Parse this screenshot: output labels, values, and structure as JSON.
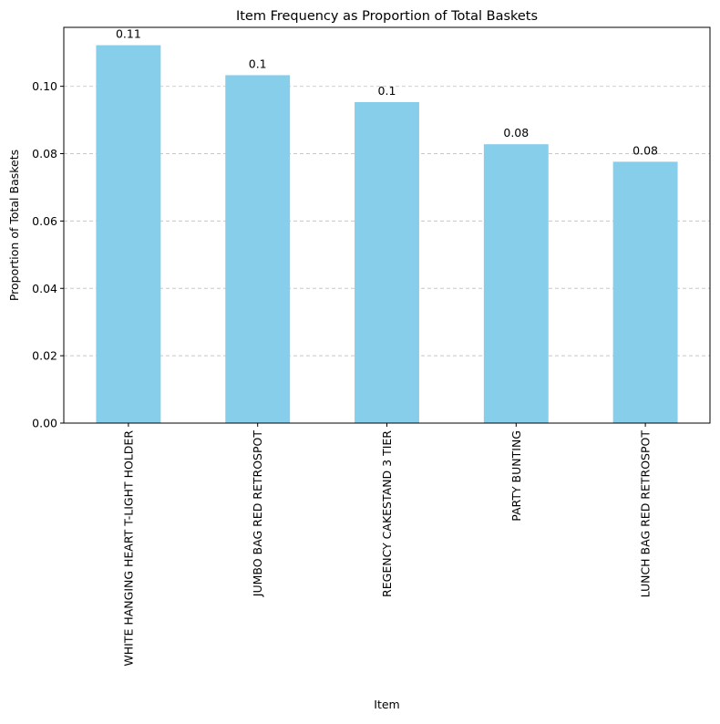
{
  "chart_data": {
    "type": "bar",
    "title": "Item Frequency as Proportion of Total Baskets",
    "xlabel": "Item",
    "ylabel": "Proportion of Total Baskets",
    "categories": [
      "WHITE HANGING HEART T-LIGHT HOLDER",
      "JUMBO BAG RED RETROSPOT",
      "REGENCY CAKESTAND 3 TIER",
      "PARTY BUNTING",
      "LUNCH BAG RED RETROSPOT"
    ],
    "values": [
      0.1122,
      0.1033,
      0.0953,
      0.0828,
      0.0776
    ],
    "data_labels": [
      "0.11",
      "0.1",
      "0.1",
      "0.08",
      "0.08"
    ],
    "ylim": [
      0,
      0.1175
    ],
    "yticks": [
      0.0,
      0.02,
      0.04,
      0.06,
      0.08,
      0.1
    ],
    "ytick_labels": [
      "0.00",
      "0.02",
      "0.04",
      "0.06",
      "0.08",
      "0.10"
    ],
    "grid": "y-dashed",
    "bar_color": "#87CEEB",
    "grid_color": "#c8c8c8"
  }
}
